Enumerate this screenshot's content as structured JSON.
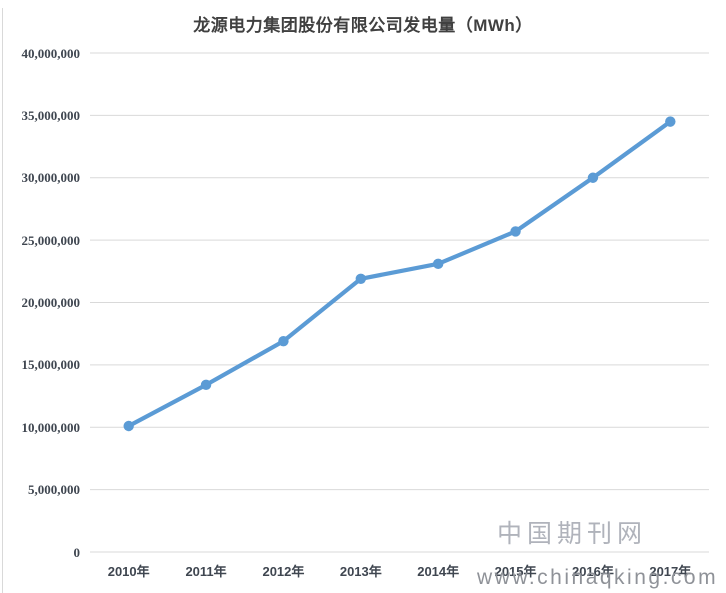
{
  "chart_data": {
    "type": "line",
    "title": "龙源电力集团股份有限公司发电量（MWh）",
    "categories": [
      "2010年",
      "2011年",
      "2012年",
      "2013年",
      "2014年",
      "2015年",
      "2016年",
      "2017年"
    ],
    "values": [
      10100000,
      13400000,
      16900000,
      21900000,
      23100000,
      25700000,
      30000000,
      34500000
    ],
    "xlabel": "",
    "ylabel": "",
    "ylim": [
      0,
      40000000
    ],
    "ytick_step": 5000000,
    "grid": true,
    "legend": "none",
    "marker": "circle"
  },
  "watermark": {
    "site_name": "中国期刊网",
    "site_url": "www.chinaqking.com"
  },
  "colors": {
    "line": "#5b9bd5",
    "marker": "#5b9bd5",
    "gridline": "#d9d9d9",
    "axis_label": "#3f4650",
    "title": "#404040",
    "watermark_cn": "#b0b3bb",
    "watermark_url": "#8f9298"
  }
}
